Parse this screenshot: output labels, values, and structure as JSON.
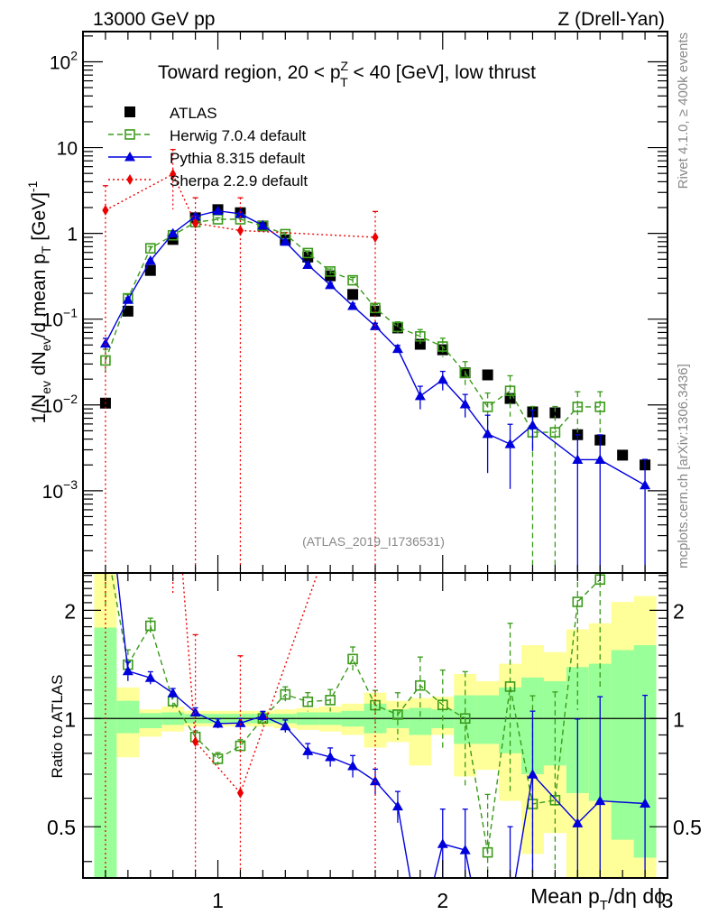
{
  "chart_data": [
    {
      "type": "scatter",
      "panel": "main",
      "title": "Toward region, 20 < p_T^Z < 40 [GeV], low thrust",
      "header_left": "13000 GeV pp",
      "header_right": "Z (Drell-Yan)",
      "xlabel": "Mean p_T/dη dϕ",
      "ylabel": "1/N_ev dN_ev/d mean p_T [GeV]^-1",
      "yscale": "log",
      "xlim": [
        0.4,
        3.0
      ],
      "ylim": [
        0.00011,
        225
      ],
      "yticks": [
        {
          "v": 0.001,
          "base": "10",
          "exp": "−3"
        },
        {
          "v": 0.01,
          "base": "10",
          "exp": "−2"
        },
        {
          "v": 0.1,
          "base": "10",
          "exp": "−1"
        },
        {
          "v": 1,
          "base": "1",
          "exp": ""
        },
        {
          "v": 10,
          "base": "10",
          "exp": ""
        },
        {
          "v": 100,
          "base": "10",
          "exp": "2"
        }
      ],
      "xticks": [
        1,
        2,
        3
      ],
      "x": [
        0.5,
        0.6,
        0.7,
        0.8,
        0.9,
        1.0,
        1.1,
        1.2,
        1.3,
        1.4,
        1.5,
        1.6,
        1.7,
        1.8,
        1.9,
        2.0,
        2.1,
        2.2,
        2.3,
        2.4,
        2.5,
        2.6,
        2.7,
        2.8,
        2.9
      ],
      "legend_position": "top-left",
      "annotation": "(ATLAS_2019_I1736531)",
      "series": [
        {
          "name": "ATLAS",
          "color": "#000000",
          "marker": "filled-square",
          "line": "none",
          "values": [
            0.0105,
            0.124,
            0.37,
            0.85,
            1.52,
            1.89,
            1.74,
            1.22,
            0.84,
            0.53,
            0.32,
            0.194,
            0.124,
            0.079,
            0.051,
            0.044,
            0.0237,
            0.0224,
            0.0119,
            0.0083,
            0.0081,
            0.0045,
            0.0039,
            0.0026,
            0.002
          ],
          "band_stat_hi": [
            1.79,
            1.12,
            1.035,
            1.04,
            1.03,
            1.03,
            1.03,
            1.03,
            1.03,
            1.04,
            1.04,
            1.05,
            1.1,
            1.06,
            1.07,
            1.06,
            1.16,
            1.16,
            1.22,
            1.3,
            1.27,
            1.39,
            1.42,
            1.55,
            1.6
          ],
          "band_stat_lo": [
            0.36,
            0.91,
            0.94,
            0.96,
            0.97,
            0.97,
            0.97,
            0.97,
            0.97,
            0.96,
            0.96,
            0.95,
            0.91,
            0.94,
            0.9,
            0.94,
            0.85,
            0.85,
            0.8,
            0.7,
            0.74,
            0.62,
            0.59,
            0.46,
            0.41
          ],
          "band_tot_hi": [
            2.6,
            1.22,
            1.06,
            1.08,
            1.05,
            1.05,
            1.05,
            1.05,
            1.06,
            1.07,
            1.08,
            1.1,
            1.18,
            1.12,
            1.14,
            1.15,
            1.33,
            1.27,
            1.42,
            1.6,
            1.53,
            1.77,
            1.84,
            2.11,
            2.19
          ],
          "band_tot_lo": [
            0.36,
            0.78,
            0.89,
            0.92,
            0.95,
            0.95,
            0.95,
            0.95,
            0.94,
            0.93,
            0.92,
            0.9,
            0.83,
            0.86,
            0.74,
            0.9,
            0.69,
            0.72,
            0.59,
            0.42,
            0.48,
            0.36,
            0.36,
            0.36,
            0.36
          ]
        },
        {
          "name": "Herwig 7.0.4 default",
          "color": "#3a9a1a",
          "marker": "open-square",
          "line": "dashed",
          "values": [
            0.033,
            0.175,
            0.67,
            0.95,
            1.35,
            1.46,
            1.46,
            1.22,
            0.98,
            0.59,
            0.36,
            0.284,
            0.135,
            0.081,
            0.063,
            0.048,
            0.0237,
            0.0095,
            0.0146,
            0.0048,
            0.0048,
            0.0095,
            0.0095,
            null,
            null
          ],
          "rel_err": [
            0.35,
            0.1,
            0.05,
            0.05,
            0.04,
            0.04,
            0.04,
            0.04,
            0.05,
            0.06,
            0.07,
            0.08,
            0.1,
            0.15,
            0.2,
            0.25,
            0.35,
            0.45,
            0.5,
            1.0,
            1.0,
            0.5,
            0.5,
            null,
            null
          ]
        },
        {
          "name": "Pythia 8.315 default",
          "color": "#0000dd",
          "marker": "filled-triangle",
          "line": "solid",
          "values": [
            0.052,
            0.168,
            0.48,
            1.0,
            1.58,
            1.83,
            1.69,
            1.24,
            0.8,
            0.43,
            0.25,
            0.143,
            0.083,
            0.045,
            0.0127,
            0.0197,
            0.0102,
            0.0046,
            0.0035,
            0.0058,
            null,
            0.0023,
            0.0023,
            null,
            0.00116
          ],
          "rel_err": [
            0.15,
            0.06,
            0.04,
            0.03,
            0.03,
            0.03,
            0.03,
            0.03,
            0.04,
            0.05,
            0.06,
            0.07,
            0.08,
            0.1,
            0.3,
            0.25,
            0.3,
            0.65,
            0.7,
            0.5,
            null,
            0.95,
            0.95,
            null,
            1.0
          ]
        },
        {
          "name": "Sherpa 2.2.9 default",
          "color": "#ee0000",
          "marker": "filled-diamond",
          "line": "dotted",
          "values": [
            1.86,
            null,
            null,
            4.9,
            1.31,
            null,
            1.08,
            null,
            null,
            null,
            null,
            null,
            0.9,
            null,
            null,
            null,
            null,
            null,
            null,
            null,
            null,
            null,
            null,
            null,
            null
          ],
          "err_hi": [
            3.6,
            null,
            null,
            9.5,
            2.6,
            null,
            2.6,
            null,
            null,
            null,
            null,
            null,
            1.8,
            null,
            null,
            null,
            null,
            null,
            null,
            null,
            null,
            null,
            null,
            null,
            null
          ],
          "err_lo": [
            0,
            null,
            null,
            1.9,
            0,
            null,
            0,
            null,
            null,
            null,
            null,
            null,
            0,
            null,
            null,
            null,
            null,
            null,
            null,
            null,
            null,
            null,
            null,
            null,
            null
          ]
        }
      ]
    },
    {
      "type": "scatter",
      "panel": "ratio",
      "ylabel": "Ratio to ATLAS",
      "yscale": "log",
      "ylim": [
        0.36,
        2.54
      ],
      "yticks": [
        0.5,
        1,
        2
      ],
      "reference_line": 1,
      "description": "Model / ATLAS ratio, computed from the main-panel series; green band = ATLAS stat, yellow band = ATLAS total uncertainty"
    }
  ],
  "side_text": {
    "rivet": "Rivet 4.1.0, ≥ 400k events",
    "mcplots": "mcplots.cern.ch [arXiv:1306.3436]"
  }
}
